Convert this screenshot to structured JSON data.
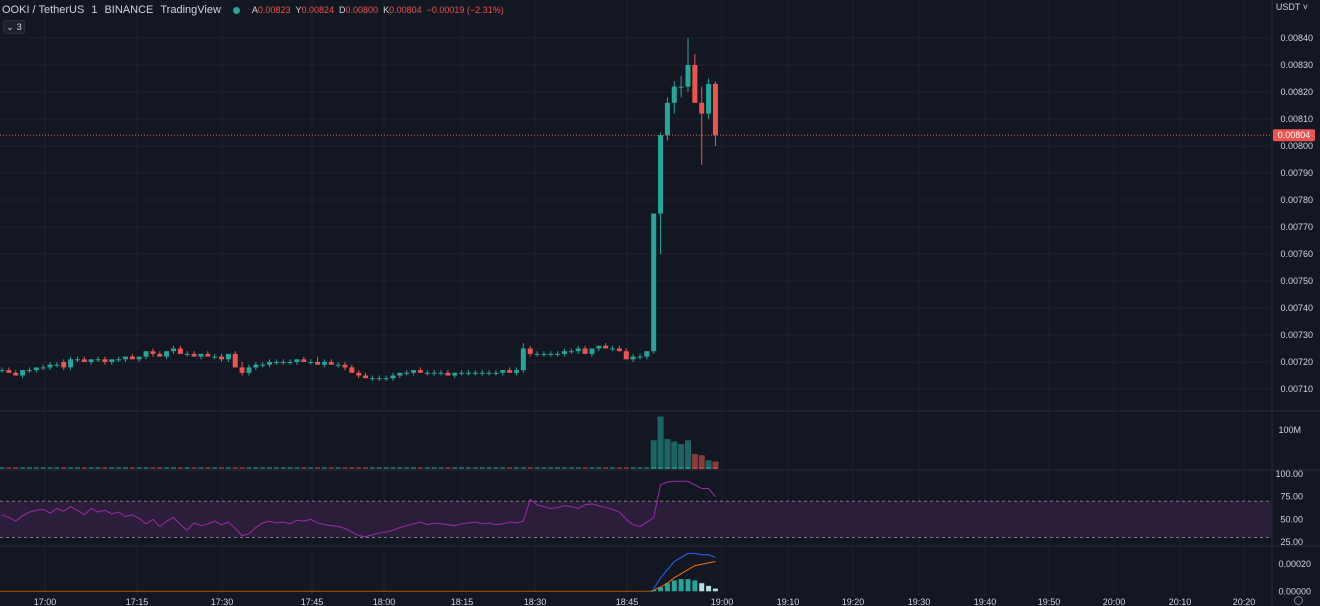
{
  "header": {
    "symbol": "OOKI / TetherUS",
    "interval": "1",
    "exchange": "BINANCE",
    "source": "TradingView",
    "ohlc": [
      {
        "key": "A",
        "value": "0.00823"
      },
      {
        "key": "Y",
        "value": "0.00824"
      },
      {
        "key": "D",
        "value": "0.00800"
      },
      {
        "key": "K",
        "value": "0.00804"
      },
      {
        "key": "",
        "value": "−0.00019 (−2.31%)"
      }
    ]
  },
  "collapse_button": {
    "icon": "chevron-down-icon",
    "label": "3"
  },
  "currency_label": "USDT",
  "colors": {
    "up": "#26a69a",
    "down": "#ef5350",
    "background": "#131722",
    "grid": "#1e222d",
    "text": "#d1d4dc",
    "rsi": "#a128a9",
    "rsi_band": "#2a1e3a",
    "macd": "#2962ff",
    "signal": "#ff6d00"
  },
  "chart_data": [
    {
      "type": "candlestick",
      "title": "OOKI / TetherUS 1 BINANCE",
      "x_ticks": [
        "17:00",
        "17:15",
        "17:30",
        "17:45",
        "18:00",
        "18:15",
        "18:30",
        "18:45",
        "19:00",
        "19:10",
        "19:20",
        "19:30",
        "19:40",
        "19:50",
        "20:00",
        "20:10",
        "20:20"
      ],
      "y_ticks": [
        "0.00840",
        "0.00830",
        "0.00820",
        "0.00810",
        "0.00800",
        "0.00790",
        "0.00780",
        "0.00770",
        "0.00760",
        "0.00750",
        "0.00740",
        "0.00730",
        "0.00720",
        "0.00710"
      ],
      "ylim": [
        0.00706,
        0.00845
      ],
      "last_price": "0.00804",
      "candles": [
        [
          0.00717,
          0.00718,
          0.00716,
          0.00717
        ],
        [
          0.00717,
          0.00718,
          0.00716,
          0.00716
        ],
        [
          0.00716,
          0.00717,
          0.00715,
          0.00715
        ],
        [
          0.00715,
          0.00717,
          0.00714,
          0.00717
        ],
        [
          0.00717,
          0.00718,
          0.00716,
          0.00717
        ],
        [
          0.00717,
          0.00718,
          0.00716,
          0.00718
        ],
        [
          0.00718,
          0.00719,
          0.00717,
          0.00718
        ],
        [
          0.00718,
          0.0072,
          0.00717,
          0.00719
        ],
        [
          0.00719,
          0.0072,
          0.00718,
          0.00719
        ],
        [
          0.0072,
          0.00721,
          0.00717,
          0.00718
        ],
        [
          0.00718,
          0.00722,
          0.00717,
          0.00721
        ],
        [
          0.00721,
          0.00722,
          0.0072,
          0.00721
        ],
        [
          0.00721,
          0.00722,
          0.0072,
          0.0072
        ],
        [
          0.0072,
          0.00721,
          0.00719,
          0.00721
        ],
        [
          0.00721,
          0.00722,
          0.0072,
          0.00721
        ],
        [
          0.00721,
          0.00722,
          0.00719,
          0.0072
        ],
        [
          0.0072,
          0.00721,
          0.00719,
          0.00721
        ],
        [
          0.00721,
          0.00722,
          0.0072,
          0.00721
        ],
        [
          0.00721,
          0.00722,
          0.0072,
          0.00722
        ],
        [
          0.00722,
          0.00723,
          0.00721,
          0.00721
        ],
        [
          0.00721,
          0.00722,
          0.0072,
          0.00722
        ],
        [
          0.00722,
          0.00724,
          0.00721,
          0.00724
        ],
        [
          0.00724,
          0.00725,
          0.00722,
          0.00723
        ],
        [
          0.00723,
          0.00724,
          0.00722,
          0.00722
        ],
        [
          0.00722,
          0.00724,
          0.00721,
          0.00724
        ],
        [
          0.00724,
          0.00726,
          0.00723,
          0.00725
        ],
        [
          0.00725,
          0.00726,
          0.00723,
          0.00723
        ],
        [
          0.00723,
          0.00724,
          0.00722,
          0.00723
        ],
        [
          0.00723,
          0.00724,
          0.00722,
          0.00722
        ],
        [
          0.00722,
          0.00723,
          0.00721,
          0.00723
        ],
        [
          0.00723,
          0.00724,
          0.00722,
          0.00722
        ],
        [
          0.00722,
          0.00723,
          0.00721,
          0.00722
        ],
        [
          0.00722,
          0.00723,
          0.0072,
          0.00721
        ],
        [
          0.00721,
          0.00723,
          0.0072,
          0.00723
        ],
        [
          0.00723,
          0.00724,
          0.00718,
          0.00718
        ],
        [
          0.00718,
          0.0072,
          0.00715,
          0.00716
        ],
        [
          0.00716,
          0.00719,
          0.00715,
          0.00718
        ],
        [
          0.00718,
          0.0072,
          0.00717,
          0.00719
        ],
        [
          0.00719,
          0.0072,
          0.00718,
          0.00719
        ],
        [
          0.00719,
          0.00721,
          0.00718,
          0.0072
        ],
        [
          0.0072,
          0.00721,
          0.00719,
          0.0072
        ],
        [
          0.0072,
          0.00721,
          0.00719,
          0.0072
        ],
        [
          0.0072,
          0.00721,
          0.00719,
          0.0072
        ],
        [
          0.0072,
          0.00721,
          0.00719,
          0.00721
        ],
        [
          0.00721,
          0.00722,
          0.0072,
          0.0072
        ],
        [
          0.0072,
          0.00721,
          0.00719,
          0.0072
        ],
        [
          0.0072,
          0.00722,
          0.00719,
          0.00719
        ],
        [
          0.00719,
          0.00721,
          0.00718,
          0.0072
        ],
        [
          0.0072,
          0.00721,
          0.00719,
          0.00719
        ],
        [
          0.00719,
          0.0072,
          0.00718,
          0.00719
        ],
        [
          0.00719,
          0.0072,
          0.00717,
          0.00718
        ],
        [
          0.00718,
          0.00719,
          0.00716,
          0.00716
        ],
        [
          0.00716,
          0.00717,
          0.00714,
          0.00715
        ],
        [
          0.00715,
          0.00716,
          0.00714,
          0.00714
        ],
        [
          0.00714,
          0.00715,
          0.00713,
          0.00714
        ],
        [
          0.00714,
          0.00715,
          0.00713,
          0.00714
        ],
        [
          0.00714,
          0.00715,
          0.00713,
          0.00714
        ],
        [
          0.00714,
          0.00716,
          0.00713,
          0.00715
        ],
        [
          0.00715,
          0.00716,
          0.00714,
          0.00716
        ],
        [
          0.00716,
          0.00717,
          0.00715,
          0.00716
        ],
        [
          0.00716,
          0.00717,
          0.00715,
          0.00717
        ],
        [
          0.00717,
          0.00718,
          0.00716,
          0.00716
        ],
        [
          0.00716,
          0.00717,
          0.00715,
          0.00716
        ],
        [
          0.00716,
          0.00717,
          0.00715,
          0.00716
        ],
        [
          0.00716,
          0.00717,
          0.00715,
          0.00716
        ],
        [
          0.00716,
          0.00717,
          0.00715,
          0.00715
        ],
        [
          0.00715,
          0.00716,
          0.00714,
          0.00716
        ],
        [
          0.00716,
          0.00717,
          0.00715,
          0.00716
        ],
        [
          0.00716,
          0.00717,
          0.00715,
          0.00716
        ],
        [
          0.00716,
          0.00717,
          0.00715,
          0.00716
        ],
        [
          0.00716,
          0.00717,
          0.00715,
          0.00716
        ],
        [
          0.00716,
          0.00717,
          0.00715,
          0.00716
        ],
        [
          0.00716,
          0.00717,
          0.00715,
          0.00716
        ],
        [
          0.00716,
          0.00717,
          0.00715,
          0.00717
        ],
        [
          0.00717,
          0.00718,
          0.00716,
          0.00716
        ],
        [
          0.00716,
          0.00718,
          0.00715,
          0.00717
        ],
        [
          0.00717,
          0.00727,
          0.00716,
          0.00725
        ],
        [
          0.00725,
          0.00726,
          0.00722,
          0.00723
        ],
        [
          0.00723,
          0.00724,
          0.00722,
          0.00723
        ],
        [
          0.00723,
          0.00724,
          0.00722,
          0.00723
        ],
        [
          0.00723,
          0.00724,
          0.00722,
          0.00723
        ],
        [
          0.00723,
          0.00724,
          0.00722,
          0.00723
        ],
        [
          0.00723,
          0.00725,
          0.00722,
          0.00724
        ],
        [
          0.00724,
          0.00725,
          0.00723,
          0.00724
        ],
        [
          0.00724,
          0.00726,
          0.00723,
          0.00725
        ],
        [
          0.00725,
          0.00726,
          0.00723,
          0.00723
        ],
        [
          0.00723,
          0.00725,
          0.00722,
          0.00725
        ],
        [
          0.00725,
          0.00726,
          0.00724,
          0.00726
        ],
        [
          0.00726,
          0.00727,
          0.00725,
          0.00725
        ],
        [
          0.00725,
          0.00726,
          0.00724,
          0.00725
        ],
        [
          0.00725,
          0.00726,
          0.00724,
          0.00724
        ],
        [
          0.00724,
          0.00725,
          0.00721,
          0.00721
        ],
        [
          0.00721,
          0.00723,
          0.0072,
          0.00722
        ],
        [
          0.00722,
          0.00723,
          0.00721,
          0.00722
        ],
        [
          0.00722,
          0.00724,
          0.00721,
          0.00724
        ],
        [
          0.00724,
          0.00775,
          0.00723,
          0.00775
        ],
        [
          0.00775,
          0.00805,
          0.0076,
          0.00804
        ],
        [
          0.00804,
          0.00818,
          0.00802,
          0.00816
        ],
        [
          0.00816,
          0.00824,
          0.00812,
          0.00822
        ],
        [
          0.00822,
          0.00826,
          0.00818,
          0.00822
        ],
        [
          0.00822,
          0.0084,
          0.0082,
          0.0083
        ],
        [
          0.0083,
          0.00834,
          0.00816,
          0.00816
        ],
        [
          0.00816,
          0.00822,
          0.00793,
          0.00812
        ],
        [
          0.00812,
          0.00825,
          0.0081,
          0.00823
        ],
        [
          0.00823,
          0.00824,
          0.008,
          0.00804
        ]
      ]
    },
    {
      "type": "bar",
      "title": "Volume",
      "y_ticks": [
        "100M"
      ],
      "up_color": "#26a69a",
      "down_color": "#ef5350",
      "values": [
        {
          "i": 95,
          "v": 115,
          "d": "up"
        },
        {
          "i": 96,
          "v": 210,
          "d": "up"
        },
        {
          "i": 97,
          "v": 120,
          "d": "up"
        },
        {
          "i": 98,
          "v": 110,
          "d": "up"
        },
        {
          "i": 99,
          "v": 100,
          "d": "up"
        },
        {
          "i": 100,
          "v": 115,
          "d": "up"
        },
        {
          "i": 101,
          "v": 60,
          "d": "down"
        },
        {
          "i": 102,
          "v": 55,
          "d": "down"
        },
        {
          "i": 103,
          "v": 35,
          "d": "up"
        },
        {
          "i": 104,
          "v": 30,
          "d": "down"
        }
      ]
    },
    {
      "type": "line",
      "title": "RSI",
      "y_ticks": [
        "100.00",
        "75.00",
        "50.00",
        "25.00"
      ],
      "ylim": [
        25,
        100
      ],
      "values": [
        55,
        52,
        48,
        54,
        58,
        60,
        61,
        57,
        62,
        59,
        64,
        60,
        55,
        62,
        58,
        60,
        56,
        58,
        53,
        55,
        51,
        45,
        50,
        42,
        48,
        52,
        44,
        38,
        46,
        43,
        45,
        48,
        44,
        47,
        40,
        32,
        34,
        41,
        46,
        48,
        46,
        47,
        45,
        49,
        48,
        50,
        46,
        44,
        43,
        42,
        40,
        36,
        32,
        31,
        33,
        35,
        36,
        38,
        41,
        43,
        45,
        47,
        44,
        46,
        45,
        44,
        43,
        45,
        46,
        47,
        45,
        46,
        44,
        45,
        47,
        46,
        48,
        72,
        66,
        64,
        62,
        63,
        65,
        64,
        62,
        66,
        67,
        65,
        63,
        61,
        58,
        50,
        44,
        42,
        47,
        52,
        88,
        91,
        92,
        92,
        92,
        88,
        84,
        84,
        75
      ]
    },
    {
      "type": "histogram",
      "title": "MACD",
      "y_ticks": [
        "0.00020",
        "0.00000"
      ],
      "ylim": [
        -2e-05,
        0.00032
      ],
      "histogram": [
        1e-05,
        3e-05,
        6e-05,
        8e-05,
        9e-05,
        9e-05,
        8e-05,
        6e-05,
        4e-05,
        2e-05
      ],
      "histogram_start": 95,
      "macd": [
        2e-05,
        0.0001,
        0.00016,
        0.00022,
        0.00025,
        0.00028,
        0.00028,
        0.00027,
        0.00027,
        0.00025
      ],
      "signal": [
        1e-05,
        3e-05,
        6e-05,
        0.0001,
        0.00013,
        0.00016,
        0.00019,
        0.0002,
        0.00021,
        0.00022
      ]
    }
  ]
}
